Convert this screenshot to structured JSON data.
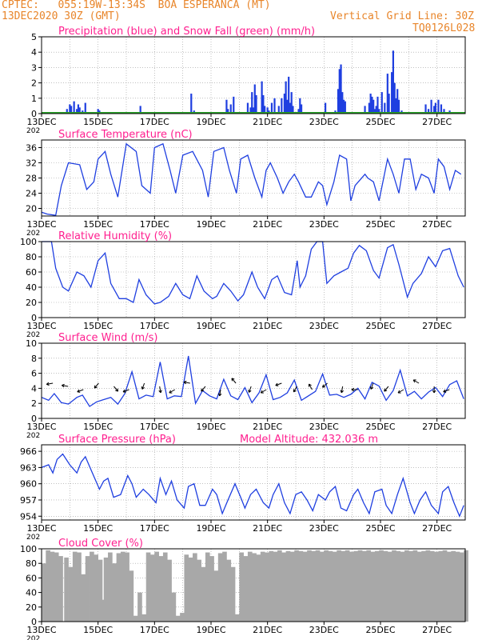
{
  "header": {
    "line1": "CPTEC:   055:19W-13:34S  BOA ESPERANCA (MT)",
    "line2_left": "13DEC2020 30Z (GMT)",
    "line2_right": "Vertical Grid Line: 30Z",
    "run_id": "TQ0126L028"
  },
  "colors": {
    "title": "#ff1f8f",
    "header": "#e8852a",
    "series": "#1f3fe0",
    "snow": "#2aa52a",
    "cloud": "#a8a8a8"
  },
  "x_labels": [
    "13DEC",
    "15DEC",
    "17DEC",
    "19DEC",
    "21DEC",
    "23DEC",
    "25DEC",
    "27DEC"
  ],
  "year_stub": "202",
  "chart_data": [
    {
      "id": "precip",
      "type": "bar",
      "title": "Precipitation (blue) and Snow Fall (green) (mm/h)",
      "ylim": [
        0,
        5
      ],
      "yticks": [
        0,
        1,
        2,
        3,
        4,
        5
      ],
      "series": [
        {
          "name": "Precipitation",
          "color": "#1f3fe0",
          "x": [
            0.9,
            1.0,
            1.05,
            1.15,
            1.25,
            1.3,
            1.35,
            1.45,
            1.5,
            1.55,
            1.9,
            2.0,
            2.05,
            3.5,
            5.3,
            5.4,
            6.55,
            6.6,
            6.7,
            6.8,
            7.3,
            7.4,
            7.45,
            7.5,
            7.55,
            7.6,
            7.8,
            7.85,
            7.9,
            8.0,
            8.05,
            8.1,
            8.15,
            8.25,
            8.4,
            8.5,
            8.6,
            8.65,
            8.7,
            8.75,
            8.8,
            8.85,
            8.9,
            9.1,
            9.15,
            9.2,
            10.05,
            10.4,
            10.5,
            10.55,
            10.6,
            10.65,
            10.7,
            10.75,
            11.45,
            11.6,
            11.65,
            11.7,
            11.75,
            11.8,
            11.85,
            11.9,
            11.95,
            12.05,
            12.15,
            12.25,
            12.3,
            12.4,
            12.45,
            12.5,
            12.55,
            12.6,
            12.65,
            12.75,
            13.5,
            13.6,
            13.7,
            13.8,
            13.9,
            13.95,
            14.05,
            14.15,
            14.25,
            14.45
          ],
          "values": [
            0.3,
            0.6,
            0.5,
            0.8,
            0.3,
            0.6,
            0.4,
            0.2,
            0.1,
            0.7,
            0.1,
            0.3,
            0.2,
            0.5,
            1.3,
            0.2,
            0.9,
            0.3,
            0.6,
            1.1,
            0.7,
            0.4,
            1.4,
            0.4,
            1.9,
            1.2,
            2.1,
            1.2,
            0.5,
            0.4,
            0.2,
            0.1,
            0.7,
            1.0,
            0.5,
            1.0,
            1.3,
            2.1,
            0.9,
            2.4,
            0.7,
            1.4,
            0.5,
            0.3,
            1.0,
            0.6,
            0.7,
            0.2,
            1.6,
            2.9,
            3.2,
            1.4,
            0.9,
            0.8,
            0.5,
            0.7,
            1.3,
            1.1,
            0.9,
            0.3,
            0.5,
            1.1,
            0.3,
            1.4,
            0.7,
            2.6,
            1.3,
            2.7,
            4.1,
            2.0,
            1.0,
            1.6,
            0.9,
            0.2,
            0.1,
            0.6,
            0.3,
            0.9,
            0.5,
            0.7,
            0.9,
            0.6,
            0.3,
            0.2
          ]
        },
        {
          "name": "Snow Fall",
          "color": "#2aa52a",
          "values": [
            0
          ]
        }
      ]
    },
    {
      "id": "temp",
      "type": "line",
      "title": "Surface Temperature (nC)",
      "ylim": [
        18,
        38
      ],
      "yticks": [
        20,
        24,
        28,
        32,
        36
      ],
      "x": [
        0,
        0.2,
        0.5,
        0.7,
        0.95,
        1.35,
        1.6,
        1.85,
        2.0,
        2.25,
        2.45,
        2.7,
        2.85,
        3.0,
        3.35,
        3.55,
        3.85,
        4.0,
        4.3,
        4.55,
        4.75,
        5.0,
        5.35,
        5.7,
        5.9,
        6.1,
        6.45,
        6.65,
        6.9,
        7.05,
        7.3,
        7.55,
        7.8,
        7.95,
        8.1,
        8.35,
        8.55,
        8.75,
        8.95,
        9.1,
        9.35,
        9.55,
        9.8,
        9.95,
        10.1,
        10.35,
        10.55,
        10.8,
        10.95,
        11.1,
        11.45,
        11.55,
        11.75,
        11.95,
        12.25,
        12.45,
        12.65,
        12.85,
        13.05,
        13.25,
        13.45,
        13.7,
        13.9,
        14.05,
        14.25,
        14.45,
        14.65,
        14.85
      ],
      "y": [
        19,
        18.5,
        18.2,
        26,
        32,
        31.5,
        25,
        27,
        33,
        35,
        29,
        23,
        30,
        37,
        35,
        26,
        24,
        36,
        37,
        30,
        24,
        34,
        35,
        30,
        23,
        35,
        36,
        30,
        24,
        33,
        34,
        28,
        23,
        30,
        32,
        28,
        24,
        27,
        29,
        27,
        23,
        23,
        27,
        26,
        21,
        27,
        34,
        33,
        22,
        26,
        29,
        28,
        27,
        22,
        33,
        29,
        24,
        33,
        33,
        25,
        29,
        28,
        24,
        33,
        31,
        25,
        30,
        29
      ]
    },
    {
      "id": "rh",
      "type": "line",
      "title": "Relative Humidity (%)",
      "ylim": [
        0,
        100
      ],
      "yticks": [
        0,
        20,
        40,
        60,
        80,
        100
      ],
      "x": [
        0,
        0.35,
        0.5,
        0.75,
        0.95,
        1.25,
        1.5,
        1.75,
        2.0,
        2.25,
        2.45,
        2.75,
        3.0,
        3.25,
        3.45,
        3.7,
        4.0,
        4.2,
        4.5,
        4.75,
        5.0,
        5.25,
        5.5,
        5.75,
        6.05,
        6.2,
        6.45,
        6.7,
        6.95,
        7.15,
        7.45,
        7.65,
        7.9,
        8.15,
        8.35,
        8.6,
        8.85,
        9.05,
        9.15,
        9.35,
        9.55,
        9.75,
        9.95,
        10.1,
        10.35,
        10.6,
        10.85,
        11.05,
        11.25,
        11.5,
        11.75,
        11.95,
        12.25,
        12.45,
        12.65,
        12.95,
        13.15,
        13.45,
        13.7,
        13.95,
        14.2,
        14.45,
        14.75,
        14.95
      ],
      "y": [
        100,
        100,
        65,
        40,
        35,
        60,
        55,
        40,
        75,
        85,
        45,
        25,
        25,
        20,
        50,
        30,
        18,
        20,
        28,
        45,
        30,
        25,
        55,
        35,
        25,
        28,
        45,
        35,
        22,
        30,
        60,
        40,
        25,
        50,
        55,
        33,
        30,
        75,
        40,
        55,
        90,
        100,
        100,
        45,
        55,
        60,
        65,
        85,
        95,
        88,
        62,
        52,
        92,
        96,
        70,
        27,
        45,
        58,
        80,
        67,
        88,
        91,
        55,
        40
      ]
    },
    {
      "id": "wind",
      "type": "line",
      "title": "Surface Wind (m/s)",
      "ylim": [
        0,
        10
      ],
      "yticks": [
        0,
        2,
        4,
        6,
        8,
        10
      ],
      "x": [
        0,
        0.25,
        0.45,
        0.7,
        0.95,
        1.25,
        1.45,
        1.7,
        1.95,
        2.2,
        2.45,
        2.7,
        2.95,
        3.2,
        3.45,
        3.7,
        3.95,
        4.2,
        4.45,
        4.7,
        4.95,
        5.2,
        5.45,
        5.7,
        5.95,
        6.2,
        6.45,
        6.7,
        6.95,
        7.2,
        7.45,
        7.7,
        7.95,
        8.2,
        8.45,
        8.7,
        8.95,
        9.2,
        9.45,
        9.7,
        9.95,
        10.2,
        10.45,
        10.7,
        10.95,
        11.2,
        11.45,
        11.7,
        11.95,
        12.2,
        12.45,
        12.7,
        12.95,
        13.2,
        13.45,
        13.7,
        13.95,
        14.2,
        14.45,
        14.7,
        14.95
      ],
      "y": [
        2.8,
        2.4,
        3.3,
        2.1,
        1.9,
        2.8,
        3.1,
        1.6,
        2.2,
        2.5,
        2.8,
        1.9,
        3.3,
        6.2,
        2.6,
        3.1,
        2.9,
        7.5,
        2.6,
        3.0,
        2.9,
        8.3,
        2.0,
        3.7,
        3.0,
        2.6,
        5.2,
        3.0,
        2.5,
        4.1,
        2.1,
        3.4,
        5.8,
        2.5,
        2.8,
        3.4,
        5.1,
        2.4,
        3.0,
        3.6,
        5.9,
        3.1,
        3.2,
        2.8,
        3.2,
        4.0,
        2.6,
        4.8,
        4.3,
        2.4,
        3.7,
        6.4,
        3.0,
        3.6,
        2.6,
        3.5,
        4.1,
        2.9,
        4.5,
        5.0,
        2.6
      ]
    },
    {
      "id": "pressure",
      "type": "line",
      "title": "Surface Pressure (hPa)",
      "subtitle": "Model Altitude: 432.036 m",
      "ylim": [
        953.3,
        967.2
      ],
      "yticks": [
        954,
        957,
        960,
        963,
        966
      ],
      "x": [
        0,
        0.25,
        0.4,
        0.55,
        0.75,
        1.0,
        1.25,
        1.4,
        1.55,
        1.8,
        2.05,
        2.2,
        2.35,
        2.55,
        2.8,
        3.05,
        3.2,
        3.35,
        3.6,
        3.8,
        4.05,
        4.2,
        4.4,
        4.6,
        4.8,
        5.05,
        5.2,
        5.4,
        5.6,
        5.8,
        6.05,
        6.2,
        6.4,
        6.6,
        6.85,
        7.05,
        7.2,
        7.4,
        7.6,
        7.85,
        8.05,
        8.2,
        8.4,
        8.6,
        8.8,
        9.0,
        9.2,
        9.4,
        9.6,
        9.8,
        10.05,
        10.2,
        10.4,
        10.6,
        10.8,
        11.05,
        11.2,
        11.4,
        11.6,
        11.8,
        12.05,
        12.2,
        12.4,
        12.6,
        12.8,
        13.05,
        13.2,
        13.4,
        13.6,
        13.8,
        14.05,
        14.2,
        14.4,
        14.6,
        14.8,
        14.95
      ],
      "y": [
        963,
        963.5,
        962,
        964.5,
        965.5,
        963.5,
        962,
        964,
        965,
        962,
        959,
        960.5,
        961,
        957.5,
        958,
        961.5,
        960,
        957.5,
        959,
        958,
        956.5,
        961,
        958,
        960.5,
        957,
        955.5,
        959.5,
        960,
        956,
        956,
        959,
        958,
        954.5,
        957,
        960,
        957.5,
        955.5,
        958,
        959,
        956.5,
        955.5,
        958,
        960,
        956.5,
        954.5,
        958,
        958.5,
        957,
        955,
        958,
        957,
        958.5,
        959.5,
        955.5,
        955,
        958,
        959,
        956.5,
        954.5,
        958.5,
        959,
        956,
        954.5,
        958,
        961,
        956.5,
        954.5,
        957,
        958.5,
        956,
        954.5,
        958.5,
        959.5,
        956.5,
        954,
        956
      ]
    },
    {
      "id": "cloud",
      "type": "bar",
      "title": "Cloud Cover (%)",
      "ylim": [
        0,
        100
      ],
      "yticks": [
        0,
        20,
        40,
        60,
        80,
        100
      ],
      "x": [
        0,
        0.15,
        0.3,
        0.45,
        0.6,
        0.8,
        0.95,
        1.1,
        1.25,
        1.4,
        1.55,
        1.7,
        1.85,
        2.0,
        2.1,
        2.2,
        2.35,
        2.5,
        2.65,
        2.8,
        2.95,
        3.1,
        3.25,
        3.4,
        3.55,
        3.7,
        3.85,
        4.0,
        4.15,
        4.3,
        4.45,
        4.6,
        4.75,
        4.9,
        5.05,
        5.2,
        5.35,
        5.5,
        5.65,
        5.8,
        5.95,
        6.1,
        6.25,
        6.4,
        6.55,
        6.7,
        6.85,
        7.0,
        7.15,
        7.3,
        7.45,
        7.6,
        7.75,
        7.9,
        8.05,
        8.2,
        8.35,
        8.5,
        8.65,
        8.8,
        8.95,
        9.1,
        9.25,
        9.4,
        9.55,
        9.7,
        9.85,
        10.0,
        10.15,
        10.3,
        10.45,
        10.6,
        10.75,
        10.9,
        11.05,
        11.2,
        11.35,
        11.5,
        11.65,
        11.8,
        11.95,
        12.1,
        12.25,
        12.4,
        12.55,
        12.7,
        12.85,
        13.0,
        13.15,
        13.3,
        13.45,
        13.6,
        13.75,
        13.9,
        14.05,
        14.2,
        14.35,
        14.5,
        14.65,
        14.8,
        14.95
      ],
      "values": [
        80,
        98,
        96,
        95,
        90,
        88,
        75,
        96,
        95,
        65,
        90,
        96,
        92,
        85,
        30,
        88,
        95,
        80,
        94,
        96,
        95,
        70,
        8,
        40,
        10,
        95,
        92,
        96,
        90,
        95,
        85,
        40,
        8,
        12,
        92,
        88,
        94,
        85,
        75,
        95,
        90,
        70,
        94,
        96,
        85,
        75,
        10,
        95,
        90,
        96,
        94,
        92,
        96,
        95,
        97,
        96,
        98,
        95,
        97,
        96,
        98,
        97,
        96,
        98,
        97,
        98,
        96,
        98,
        97,
        96,
        98,
        97,
        98,
        96,
        97,
        98,
        97,
        98,
        96,
        97,
        98,
        97,
        96,
        98,
        97,
        96,
        98,
        97,
        98,
        96,
        97,
        98,
        97,
        96,
        97,
        98,
        96,
        97,
        96,
        95,
        98
      ]
    }
  ]
}
